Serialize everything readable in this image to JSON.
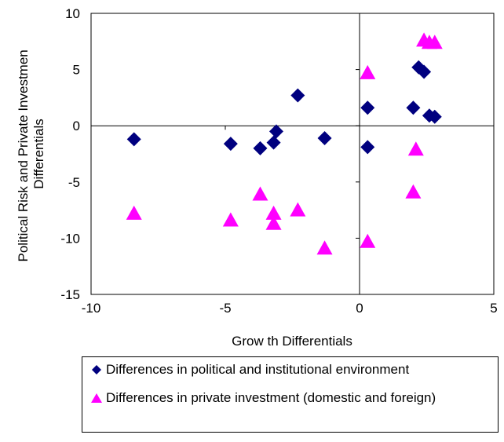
{
  "chart_data": {
    "type": "scatter",
    "title": "",
    "xlabel": "Grow th Differentials",
    "ylabel_lines": [
      "Political Risk and Private Investmen",
      "Differentials"
    ],
    "xlim": [
      -10,
      5
    ],
    "ylim": [
      -15,
      10
    ],
    "x_ticks": [
      -10,
      -5,
      0,
      5
    ],
    "y_ticks": [
      10,
      5,
      0,
      -5,
      -10,
      -15
    ],
    "x_tick_labels": [
      "-10",
      "-5",
      "0",
      "5"
    ],
    "y_tick_labels": [
      "10",
      "5",
      "0",
      "-5",
      "-10",
      "-15"
    ],
    "grid": false,
    "legend_position": "bottom",
    "series": [
      {
        "name": "Differences in political and institutional environment",
        "marker": "diamond",
        "color": "#00007f",
        "points": [
          [
            -8.4,
            -1.2
          ],
          [
            -4.8,
            -1.6
          ],
          [
            -3.7,
            -2.0
          ],
          [
            -3.2,
            -1.5
          ],
          [
            -3.1,
            -0.5
          ],
          [
            -2.3,
            2.7
          ],
          [
            -1.3,
            -1.1
          ],
          [
            0.3,
            1.6
          ],
          [
            0.3,
            -1.9
          ],
          [
            2.0,
            1.6
          ],
          [
            2.2,
            5.2
          ],
          [
            2.4,
            4.8
          ],
          [
            2.6,
            0.9
          ],
          [
            2.8,
            0.8
          ]
        ]
      },
      {
        "name": "Differences in private investment (domestic and foreign)",
        "marker": "triangle",
        "color": "#ff00ff",
        "points": [
          [
            -8.4,
            -7.8
          ],
          [
            -4.8,
            -8.4
          ],
          [
            -3.7,
            -6.1
          ],
          [
            -3.2,
            -7.8
          ],
          [
            -3.2,
            -8.7
          ],
          [
            -2.3,
            -7.5
          ],
          [
            -1.3,
            -10.9
          ],
          [
            0.3,
            4.7
          ],
          [
            0.3,
            -10.3
          ],
          [
            2.0,
            -5.9
          ],
          [
            2.1,
            -2.1
          ],
          [
            2.4,
            7.6
          ],
          [
            2.6,
            7.4
          ],
          [
            2.8,
            7.4
          ]
        ]
      }
    ]
  }
}
